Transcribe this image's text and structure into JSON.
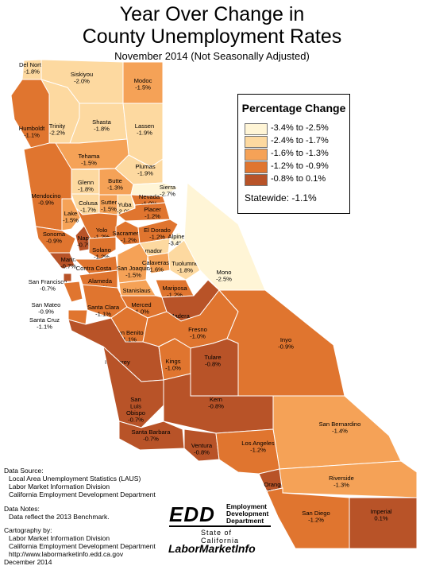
{
  "title_line1": "Year Over Change in",
  "title_line2": "County Unemployment Rates",
  "subtitle": "November 2014  (Not Seasonally Adjusted)",
  "legend": {
    "title": "Percentage Change",
    "bins": [
      {
        "label": "-3.4% to -2.5%",
        "color": "#fff5d6"
      },
      {
        "label": "-2.4% to -1.7%",
        "color": "#fdd9a0"
      },
      {
        "label": "-1.6% to -1.3%",
        "color": "#f5a257"
      },
      {
        "label": "-1.2% to -0.9%",
        "color": "#e0752f"
      },
      {
        "label": "-0.8% to 0.1%",
        "color": "#b85328"
      }
    ],
    "statewide": "Statewide:  -1.1%"
  },
  "counties": [
    {
      "name": "Del Norte",
      "value": "-1.8%",
      "bin": 1
    },
    {
      "name": "Siskiyou",
      "value": "-2.0%",
      "bin": 1
    },
    {
      "name": "Modoc",
      "value": "-1.5%",
      "bin": 2
    },
    {
      "name": "Humboldt",
      "value": "-1.1%",
      "bin": 3
    },
    {
      "name": "Trinity",
      "value": "-2.2%",
      "bin": 1
    },
    {
      "name": "Shasta",
      "value": "-1.8%",
      "bin": 1
    },
    {
      "name": "Lassen",
      "value": "-1.9%",
      "bin": 1
    },
    {
      "name": "Tehama",
      "value": "-1.5%",
      "bin": 2
    },
    {
      "name": "Plumas",
      "value": "-1.9%",
      "bin": 1
    },
    {
      "name": "Glenn",
      "value": "-1.8%",
      "bin": 1
    },
    {
      "name": "Butte",
      "value": "-1.3%",
      "bin": 2
    },
    {
      "name": "Sierra",
      "value": "-2.7%",
      "bin": 0
    },
    {
      "name": "Mendocino",
      "value": "-0.9%",
      "bin": 3
    },
    {
      "name": "Colusa",
      "value": "-1.7%",
      "bin": 1
    },
    {
      "name": "Sutter",
      "value": "-1.5%",
      "bin": 2
    },
    {
      "name": "Yuba",
      "value": "-2.0%",
      "bin": 1
    },
    {
      "name": "Nevada",
      "value": "-1.0%",
      "bin": 3
    },
    {
      "name": "Placer",
      "value": "-1.2%",
      "bin": 3
    },
    {
      "name": "Lake",
      "value": "-1.5%",
      "bin": 2
    },
    {
      "name": "Sonoma",
      "value": "-0.9%",
      "bin": 3
    },
    {
      "name": "Napa",
      "value": "-0.7%",
      "bin": 4
    },
    {
      "name": "Yolo",
      "value": "-1.2%",
      "bin": 3
    },
    {
      "name": "Sacramento",
      "value": "-1.2%",
      "bin": 3
    },
    {
      "name": "El Dorado",
      "value": "-1.2%",
      "bin": 3
    },
    {
      "name": "Solano",
      "value": "-1.2%",
      "bin": 3
    },
    {
      "name": "Marin",
      "value": "-0.7%",
      "bin": 4
    },
    {
      "name": "Amador",
      "value": "-1.7%",
      "bin": 1
    },
    {
      "name": "Alpine",
      "value": "-3.4%",
      "bin": 0
    },
    {
      "name": "Contra Costa",
      "value": "-1.1%",
      "bin": 3
    },
    {
      "name": "San Joaquin",
      "value": "-1.5%",
      "bin": 2
    },
    {
      "name": "Calaveras",
      "value": "-1.6%",
      "bin": 2
    },
    {
      "name": "Tuolumne",
      "value": "-1.8%",
      "bin": 1
    },
    {
      "name": "Mono",
      "value": "-2.5%",
      "bin": 0
    },
    {
      "name": "San Francisco",
      "value": "-0.7%",
      "bin": 4
    },
    {
      "name": "Alameda",
      "value": "-1.1%",
      "bin": 3
    },
    {
      "name": "Stanislaus",
      "value": "-1.4%",
      "bin": 2
    },
    {
      "name": "Mariposa",
      "value": "-1.2%",
      "bin": 3
    },
    {
      "name": "San Mateo",
      "value": "-0.9%",
      "bin": 3
    },
    {
      "name": "Santa Clara",
      "value": "-1.1%",
      "bin": 3
    },
    {
      "name": "Merced",
      "value": "-1.0%",
      "bin": 3
    },
    {
      "name": "Madera",
      "value": "-0.3%",
      "bin": 4
    },
    {
      "name": "Santa Cruz",
      "value": "-1.1%",
      "bin": 3
    },
    {
      "name": "San Benito",
      "value": "-1.1%",
      "bin": 3
    },
    {
      "name": "Fresno",
      "value": "-1.0%",
      "bin": 3
    },
    {
      "name": "Inyo",
      "value": "-0.9%",
      "bin": 3
    },
    {
      "name": "Monterey",
      "value": "-0.6%",
      "bin": 4
    },
    {
      "name": "Kings",
      "value": "-1.0%",
      "bin": 3
    },
    {
      "name": "Tulare",
      "value": "-0.8%",
      "bin": 4
    },
    {
      "name": "San Luis Obispo",
      "value": "-0.7%",
      "bin": 4
    },
    {
      "name": "Kern",
      "value": "-0.8%",
      "bin": 4
    },
    {
      "name": "San Bernardino",
      "value": "-1.4%",
      "bin": 2
    },
    {
      "name": "Santa Barbara",
      "value": "-0.7%",
      "bin": 4
    },
    {
      "name": "Ventura",
      "value": "-0.8%",
      "bin": 4
    },
    {
      "name": "Los Angeles",
      "value": "-1.2%",
      "bin": 3
    },
    {
      "name": "Orange",
      "value": "-0.8%",
      "bin": 4
    },
    {
      "name": "Riverside",
      "value": "-1.3%",
      "bin": 2
    },
    {
      "name": "San Diego",
      "value": "-1.2%",
      "bin": 3
    },
    {
      "name": "Imperial",
      "value": "0.1%",
      "bin": 4
    }
  ],
  "source": {
    "heading": "Data Source:",
    "lines": [
      "Local Area Unemployment Statistics (LAUS)",
      "Labor Market Information Division",
      "California Employment Development Department"
    ]
  },
  "notes": {
    "heading": "Data Notes:",
    "lines": [
      "Data reflect the 2013 Benchmark."
    ]
  },
  "cartography": {
    "heading": "Cartography by:",
    "lines": [
      "Labor Market Information Division",
      "California Employment Development Department",
      "http://www.labormarketinfo.edd.ca.gov",
      "December 2014"
    ]
  },
  "edd_logo": {
    "letters": "EDD",
    "line1": "Employment",
    "line2": "Development",
    "line3": "Department",
    "state": "State of California"
  },
  "lmi_logo": "LaborMarketInfo"
}
